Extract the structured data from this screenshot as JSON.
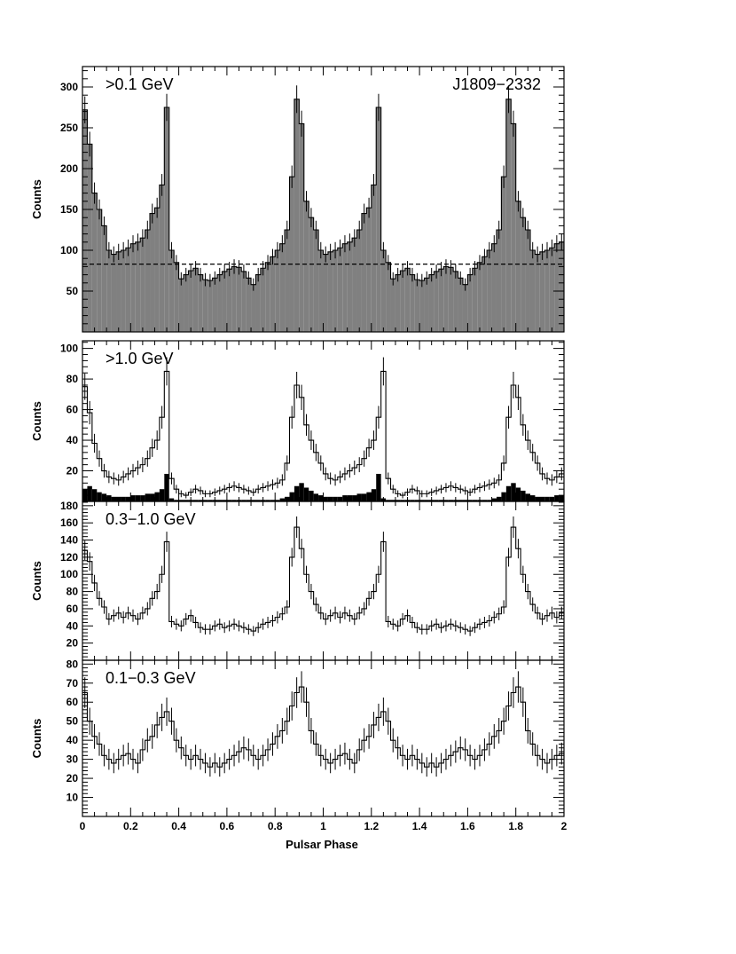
{
  "figure": {
    "source_name": "J1809−2332",
    "xlabel": "Pulsar Phase",
    "x_ticks": [
      0,
      0.2,
      0.4,
      0.6,
      0.8,
      1,
      1.2,
      1.4,
      1.6,
      1.8,
      2
    ],
    "x_tick_labels": [
      "0",
      "0.2",
      "0.4",
      "0.6",
      "0.8",
      "1",
      "1.2",
      "1.4",
      "1.6",
      "1.8",
      "2"
    ]
  },
  "chart_data": [
    {
      "type": "bar",
      "title": ">0.1 GeV",
      "ylabel": "Counts",
      "xlim": [
        0,
        2
      ],
      "ylim": [
        0,
        325
      ],
      "y_ticks": [
        50,
        100,
        150,
        200,
        250,
        300
      ],
      "y_tick_labels": [
        "50",
        "100",
        "150",
        "200",
        "250",
        "300"
      ],
      "bin_width": 0.02,
      "background_level": 83,
      "series": [
        {
          "values": [
            272,
            230,
            170,
            150,
            130,
            100,
            95,
            98,
            100,
            103,
            108,
            110,
            115,
            125,
            145,
            152,
            180,
            275,
            100,
            85,
            65,
            70,
            75,
            78,
            70,
            64,
            63,
            66,
            70,
            74,
            77,
            80,
            79,
            74,
            66,
            58,
            70,
            78,
            85,
            92,
            100,
            108,
            125,
            190,
            285,
            255,
            160,
            140,
            125,
            100,
            95,
            98,
            100,
            103,
            108,
            110,
            115,
            125,
            145,
            152,
            180,
            275,
            100,
            85,
            65,
            70,
            75,
            78,
            70,
            64,
            63,
            66,
            70,
            74,
            77,
            80,
            79,
            74,
            66,
            58,
            70,
            78,
            85,
            92,
            100,
            108,
            125,
            190,
            285,
            255,
            160,
            140,
            125,
            100,
            95,
            98,
            100,
            103,
            108,
            110
          ]
        }
      ],
      "error_bars": "yes",
      "fill_color": "#808080"
    },
    {
      "type": "bar",
      "title": ">1.0 GeV",
      "ylabel": "Counts",
      "xlim": [
        0,
        2
      ],
      "ylim": [
        0,
        105
      ],
      "y_ticks": [
        20,
        40,
        60,
        80,
        100
      ],
      "y_tick_labels": [
        "20",
        "40",
        "60",
        "80",
        "100"
      ],
      "bin_width": 0.02,
      "series": [
        {
          "values": [
            75,
            58,
            38,
            28,
            20,
            16,
            15,
            14,
            16,
            18,
            20,
            22,
            24,
            28,
            35,
            40,
            55,
            85,
            15,
            8,
            5,
            4,
            6,
            8,
            7,
            5,
            5,
            6,
            7,
            8,
            9,
            10,
            9,
            8,
            7,
            6,
            8,
            9,
            10,
            11,
            12,
            14,
            25,
            55,
            76,
            68,
            50,
            40,
            32,
            25,
            18,
            15,
            14,
            16,
            18,
            20,
            22,
            24,
            28,
            35,
            40,
            55,
            85,
            15,
            8,
            5,
            4,
            6,
            8,
            7,
            5,
            5,
            6,
            7,
            8,
            9,
            10,
            9,
            8,
            7,
            6,
            8,
            9,
            10,
            11,
            12,
            14,
            25,
            55,
            76,
            68,
            50,
            40,
            32,
            25,
            18,
            15,
            14,
            16,
            18
          ]
        },
        {
          "values": [
            8,
            10,
            8,
            6,
            5,
            4,
            3,
            3,
            3,
            3,
            4,
            4,
            4,
            5,
            5,
            6,
            8,
            18,
            2,
            1,
            1,
            1,
            1,
            1,
            1,
            1,
            1,
            1,
            1,
            1,
            1,
            1,
            1,
            1,
            1,
            1,
            1,
            1,
            1,
            1,
            1,
            2,
            3,
            6,
            10,
            12,
            9,
            7,
            5,
            4,
            3,
            3,
            3,
            3,
            4,
            4,
            4,
            5,
            5,
            6,
            8,
            18,
            2,
            1,
            1,
            1,
            1,
            1,
            1,
            1,
            1,
            1,
            1,
            1,
            1,
            1,
            1,
            1,
            1,
            1,
            1,
            1,
            1,
            1,
            1,
            2,
            3,
            6,
            10,
            12,
            9,
            7,
            5,
            4,
            3,
            3,
            3,
            3,
            4,
            4
          ]
        }
      ],
      "error_bars": "yes",
      "fill_colors": [
        "none",
        "#000000"
      ]
    },
    {
      "type": "bar",
      "title": "0.3−1.0 GeV",
      "ylabel": "Counts",
      "xlim": [
        0,
        2
      ],
      "ylim": [
        0,
        185
      ],
      "y_ticks": [
        20,
        40,
        60,
        80,
        100,
        120,
        140,
        160,
        180
      ],
      "y_tick_labels": [
        "20",
        "40",
        "60",
        "80",
        "100",
        "120",
        "140",
        "160",
        "180"
      ],
      "bin_width": 0.02,
      "series": [
        {
          "values": [
            128,
            115,
            90,
            72,
            62,
            48,
            52,
            55,
            50,
            55,
            52,
            48,
            55,
            60,
            72,
            80,
            100,
            138,
            45,
            42,
            40,
            48,
            52,
            44,
            38,
            36,
            36,
            40,
            42,
            38,
            40,
            42,
            40,
            38,
            36,
            34,
            38,
            42,
            44,
            46,
            50,
            54,
            62,
            120,
            155,
            130,
            100,
            80,
            65,
            55,
            48,
            52,
            55,
            50,
            55,
            52,
            48,
            55,
            60,
            72,
            80,
            100,
            138,
            45,
            42,
            40,
            48,
            52,
            44,
            38,
            36,
            36,
            40,
            42,
            38,
            40,
            42,
            40,
            38,
            36,
            34,
            38,
            42,
            44,
            46,
            50,
            54,
            62,
            120,
            155,
            130,
            100,
            80,
            65,
            55,
            48,
            52,
            55,
            50,
            55
          ]
        }
      ],
      "error_bars": "yes",
      "fill_color": "none"
    },
    {
      "type": "bar",
      "title": "0.1−0.3 GeV",
      "ylabel": "Counts",
      "xlim": [
        0,
        2
      ],
      "ylim": [
        0,
        82
      ],
      "y_ticks": [
        10,
        20,
        30,
        40,
        50,
        60,
        70,
        80
      ],
      "y_tick_labels": [
        "10",
        "20",
        "30",
        "40",
        "50",
        "60",
        "70",
        "80"
      ],
      "bin_width": 0.02,
      "series": [
        {
          "values": [
            65,
            50,
            42,
            38,
            32,
            30,
            28,
            30,
            32,
            33,
            30,
            28,
            35,
            40,
            42,
            48,
            52,
            55,
            50,
            40,
            36,
            32,
            30,
            32,
            30,
            28,
            26,
            28,
            26,
            28,
            30,
            32,
            34,
            36,
            35,
            32,
            30,
            32,
            35,
            38,
            42,
            45,
            50,
            58,
            65,
            68,
            60,
            45,
            38,
            32,
            30,
            28,
            30,
            32,
            33,
            30,
            28,
            35,
            40,
            42,
            48,
            52,
            55,
            50,
            40,
            36,
            32,
            30,
            32,
            30,
            28,
            26,
            28,
            26,
            28,
            30,
            32,
            34,
            36,
            35,
            32,
            30,
            32,
            35,
            38,
            42,
            45,
            50,
            58,
            65,
            68,
            60,
            45,
            38,
            32,
            30,
            28,
            30,
            32,
            33
          ]
        }
      ],
      "error_bars": "yes",
      "fill_color": "none"
    }
  ]
}
